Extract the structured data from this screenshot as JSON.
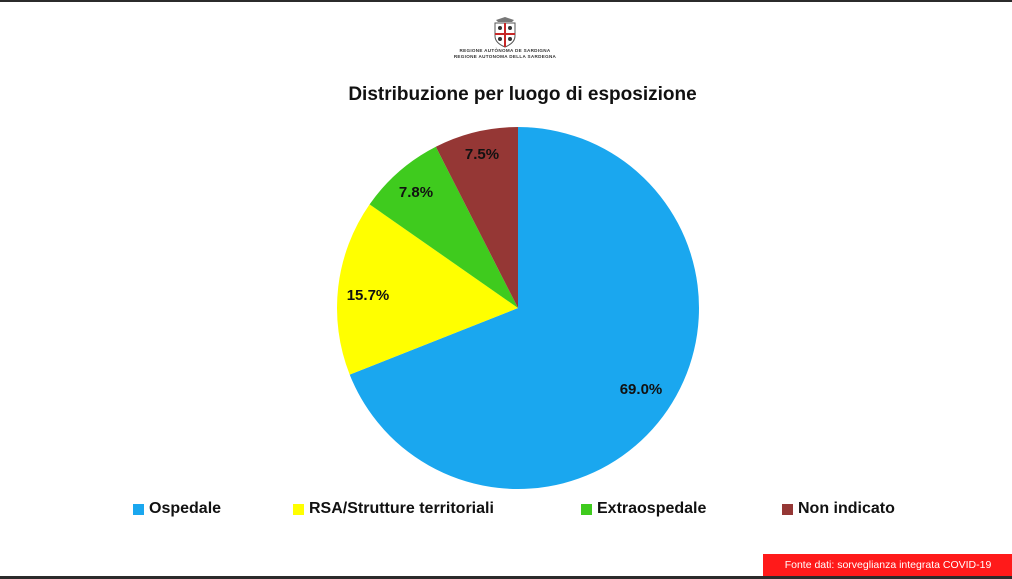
{
  "logo": {
    "line1": "REGIONE AUTÒNOMA DE SARDIGNA",
    "line2": "REGIONE AUTONOMA DELLA SARDEGNA"
  },
  "chart_data": {
    "type": "pie",
    "title": "Distribuzione per luogo di esposizione",
    "slices": [
      {
        "label": "Ospedale",
        "value": 69.0,
        "value_label": "69.0%",
        "color": "#1aa7ef"
      },
      {
        "label": "RSA/Strutture territoriali",
        "value": 15.7,
        "value_label": "15.7%",
        "color": "#ffff00"
      },
      {
        "label": "Extraospedale",
        "value": 7.8,
        "value_label": "7.8%",
        "color": "#3fcb1e"
      },
      {
        "label": "Non indicato",
        "value": 7.5,
        "value_label": "7.5%",
        "color": "#953735"
      }
    ],
    "start_angle": "12 o'clock",
    "direction": "clockwise",
    "legend_position": "bottom"
  },
  "source_note": "Fonte dati: sorveglianza integrata COVID-19"
}
